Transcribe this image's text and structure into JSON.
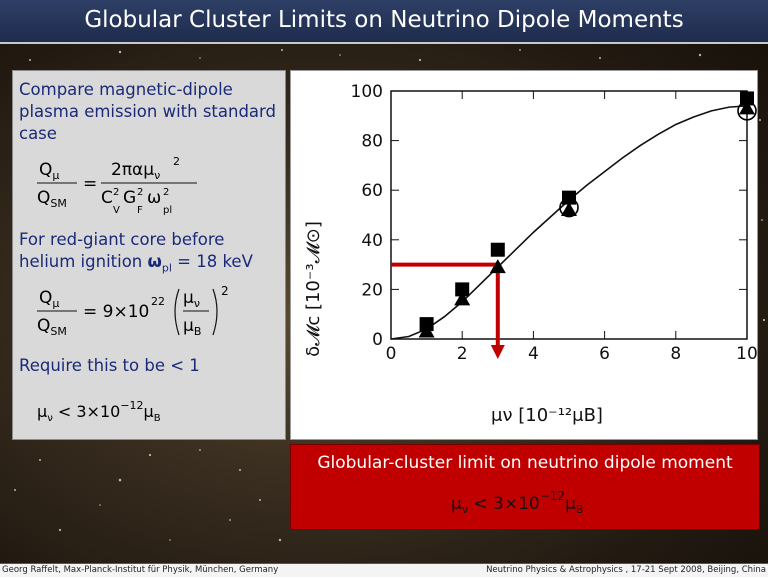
{
  "slide": {
    "title": "Globular Cluster Limits on Neutrino Dipole Moments",
    "footer_left": "Georg Raffelt, Max-Planck-Institut für Physik, München, Germany",
    "footer_right": "Neutrino Physics & Astrophysics , 17-21 Sept 2008, Beijing, China"
  },
  "left": {
    "text1": "Compare magnetic-dipole plasma emission with standard case",
    "text2_a": "For red-giant core before helium ignition ",
    "text2_omega": "ω",
    "text2_sub": "pl",
    "text2_b": " = 18 keV",
    "text3": "Require this to be  < 1"
  },
  "equations": {
    "eq1_num_left": "Q",
    "eq1_num_left_sub": "μ",
    "eq1_den_left": "Q",
    "eq1_den_left_sub": "SM",
    "eq1_eq": "=",
    "eq1_num_right": "2παμ",
    "eq1_num_right_sub": "ν",
    "eq1_num_right_sup": "2",
    "eq1_den_right": "C",
    "eq1_den_right_sup1": "2",
    "eq1_den_right_sub1": "V",
    "eq1_den_right_G": "G",
    "eq1_den_right_sup2": "2",
    "eq1_den_right_sub2": "F",
    "eq1_den_right_w": "ω",
    "eq1_den_right_sup3": "2",
    "eq1_den_right_sub3": "pl",
    "eq2_eq": "= 9×10",
    "eq2_exp": "22",
    "eq2_frac_num": "μ",
    "eq2_frac_num_sub": "ν",
    "eq2_frac_den": "μ",
    "eq2_frac_den_sub": "B",
    "eq2_sup": "2",
    "eq3": "μ",
    "eq3_sub": "ν",
    "eq3_mid": " < 3×10",
    "eq3_exp": "−12",
    "eq3_end": "μ",
    "eq3_end_sub": "B"
  },
  "red_box": {
    "title": "Globular-cluster limit on neutrino dipole moment",
    "eq": "μ",
    "eq_sub": "ν",
    "eq_mid": " < 3×10",
    "eq_exp": "−12",
    "eq_end": "μ",
    "eq_end_sub": "B"
  },
  "chart_data": {
    "type": "scatter",
    "xlim": [
      0,
      10
    ],
    "ylim": [
      0,
      100
    ],
    "xticks": [
      0,
      2,
      4,
      6,
      8,
      10
    ],
    "yticks": [
      0,
      20,
      40,
      60,
      80,
      100
    ],
    "xlabel": "μν [10⁻¹²μB]",
    "ylabel": "δ𝓜c [10⁻³𝓜⊙]",
    "grid": false,
    "curve": {
      "x": [
        0,
        0.5,
        1,
        1.5,
        2,
        2.5,
        3,
        3.5,
        4,
        4.5,
        5,
        5.5,
        6,
        6.5,
        7,
        7.5,
        8,
        8.5,
        9,
        9.5,
        10
      ],
      "y": [
        0,
        1,
        4,
        9,
        15,
        22,
        29,
        36,
        43,
        49.5,
        56,
        62,
        67.5,
        73,
        78,
        82.5,
        86.5,
        89.5,
        92,
        93.5,
        94
      ]
    },
    "series": [
      {
        "marker": "square",
        "x": [
          1,
          2,
          3,
          5,
          10
        ],
        "y": [
          6,
          20,
          36,
          57,
          97
        ]
      },
      {
        "marker": "triangle",
        "x": [
          1,
          2,
          3,
          5,
          10
        ],
        "y": [
          3,
          16,
          29,
          52,
          93
        ]
      },
      {
        "marker": "circle",
        "x": [
          5,
          10
        ],
        "y": [
          53,
          92
        ]
      }
    ],
    "highlight": {
      "x": 3,
      "y": 30
    }
  }
}
